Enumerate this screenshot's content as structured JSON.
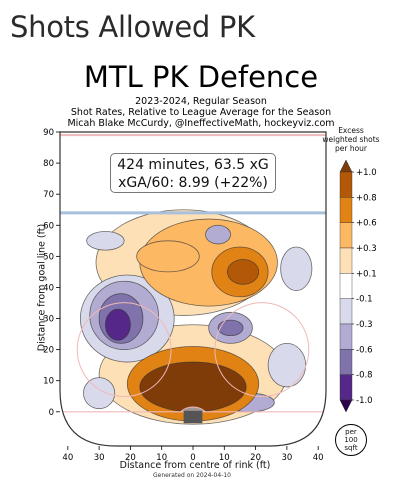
{
  "page_title": "Shots Allowed PK",
  "chart_data": {
    "type": "heatmap",
    "title": "MTL PK Defence",
    "subtitle_lines": [
      "2023-2024, Regular Season",
      "Shot Rates, Relative to League Average for the Season",
      "Micah Blake McCurdy, @IneffectiveMath, hockeyviz.com"
    ],
    "annotation_lines": [
      "424 minutes, 63.5 xG",
      "xGA/60: 8.99 (+22%)"
    ],
    "xlabel": "Distance from centre of rink (ft)",
    "ylabel": "Distance from goal line (ft)",
    "xlim": [
      -42.5,
      42.5
    ],
    "ylim": [
      -11,
      90
    ],
    "x_ticks": [
      "40",
      "30",
      "20",
      "10",
      "0",
      "10",
      "20",
      "30",
      "40"
    ],
    "x_tick_values": [
      -40,
      -30,
      -20,
      -10,
      0,
      10,
      20,
      30,
      40
    ],
    "y_ticks": [
      0,
      10,
      20,
      30,
      40,
      50,
      60,
      70,
      80,
      90
    ],
    "colorbar": {
      "title": "Excess weighted shots per hour",
      "labels": [
        "+1.0",
        "+0.8",
        "+0.6",
        "+0.3",
        "+0.1",
        "-0.1",
        "-0.3",
        "-0.6",
        "-0.8",
        "-1.0"
      ],
      "level_values": [
        1.0,
        0.8,
        0.6,
        0.3,
        0.1,
        -0.1,
        -0.3,
        -0.6,
        -0.8,
        -1.0
      ],
      "colors": [
        "#7f3b08",
        "#b35806",
        "#e08214",
        "#fdb863",
        "#fee0b6",
        "#ffffff",
        "#d8daeb",
        "#b2abd2",
        "#8073ac",
        "#542788",
        "#2d004b"
      ]
    },
    "per_unit": [
      "per",
      "100",
      "sqft"
    ],
    "footer": "Generated on 2024-04-10",
    "blobs": [
      {
        "x": 0,
        "y": 8,
        "rx": 17,
        "ry": 8,
        "level": 1.0
      },
      {
        "x": 0,
        "y": 9,
        "rx": 21,
        "ry": 12,
        "level": 0.6
      },
      {
        "x": 0,
        "y": 12,
        "rx": 30,
        "ry": 16,
        "level": 0.1
      },
      {
        "x": 16,
        "y": 45,
        "rx": 5,
        "ry": 4,
        "level": 0.8
      },
      {
        "x": 15,
        "y": 45,
        "rx": 9,
        "ry": 8,
        "level": 0.6
      },
      {
        "x": 5,
        "y": 48,
        "rx": 22,
        "ry": 14,
        "level": 0.3
      },
      {
        "x": -8,
        "y": 50,
        "rx": 10,
        "ry": 5,
        "level": 0.3
      },
      {
        "x": -3,
        "y": 48,
        "rx": 28,
        "ry": 17,
        "level": 0.1
      },
      {
        "x": -24,
        "y": 28,
        "rx": 4,
        "ry": 5,
        "level": -0.8
      },
      {
        "x": -23,
        "y": 30,
        "rx": 7,
        "ry": 8,
        "level": -0.6
      },
      {
        "x": -22,
        "y": 31,
        "rx": 11,
        "ry": 11,
        "level": -0.3
      },
      {
        "x": -21,
        "y": 30,
        "rx": 15,
        "ry": 14,
        "level": -0.1
      },
      {
        "x": 12,
        "y": 27,
        "rx": 4,
        "ry": 2.5,
        "level": -0.6
      },
      {
        "x": 12,
        "y": 27,
        "rx": 7,
        "ry": 5,
        "level": -0.3
      },
      {
        "x": 8,
        "y": 57,
        "rx": 4,
        "ry": 3,
        "level": -0.3
      },
      {
        "x": -28,
        "y": 55,
        "rx": 6,
        "ry": 3,
        "level": -0.1
      },
      {
        "x": 33,
        "y": 46,
        "rx": 5,
        "ry": 7,
        "level": -0.1
      },
      {
        "x": 18,
        "y": 3,
        "rx": 8,
        "ry": 3,
        "level": -0.3
      },
      {
        "x": -30,
        "y": 6,
        "rx": 5,
        "ry": 5,
        "level": -0.1
      },
      {
        "x": 30,
        "y": 15,
        "rx": 6,
        "ry": 7,
        "level": -0.1
      }
    ]
  }
}
